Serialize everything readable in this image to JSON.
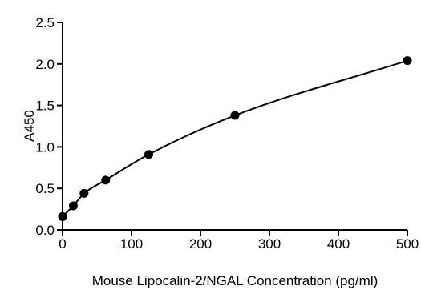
{
  "chart_data": {
    "type": "scatter",
    "title": "",
    "xlabel": "Mouse Lipocalin-2/NGAL Concentration (pg/ml)",
    "ylabel": "A450",
    "xlim": [
      0,
      500
    ],
    "ylim": [
      0,
      2.5
    ],
    "x_ticks": [
      0,
      100,
      200,
      300,
      400,
      500
    ],
    "x_tick_labels": [
      "0",
      "100",
      "200",
      "300",
      "400",
      "500"
    ],
    "y_ticks": [
      0,
      0.5,
      1.0,
      1.5,
      2.0,
      2.5
    ],
    "y_tick_labels": [
      "0.0",
      "0.5",
      "1.0",
      "1.5",
      "2.0",
      "2.5"
    ],
    "grid": false,
    "legend": "none",
    "fit_curve": true,
    "series": [
      {
        "x": [
          0,
          15.6,
          31.25,
          62.5,
          125,
          250,
          500
        ],
        "y": [
          0.16,
          0.29,
          0.44,
          0.6,
          0.91,
          1.38,
          2.04
        ]
      }
    ]
  }
}
